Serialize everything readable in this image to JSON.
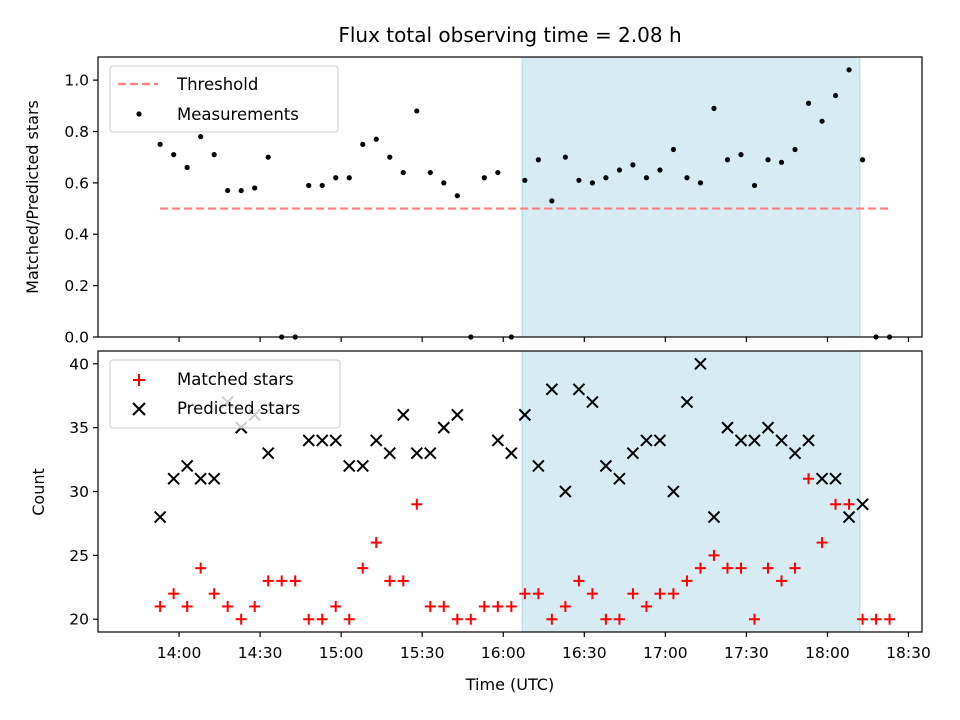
{
  "chart_data": [
    {
      "type": "scatter",
      "title": "Flux total observing time = 2.08 h",
      "xlabel": "",
      "ylabel": "Matched/Predicted stars",
      "ylim": [
        0,
        1.09
      ],
      "yticks": [
        "0.0",
        "0.2",
        "0.4",
        "0.6",
        "0.8",
        "1.0"
      ],
      "ytick_values": [
        0,
        0.2,
        0.4,
        0.6,
        0.8,
        1.0
      ],
      "legend_placement": "upper-left",
      "shaded_span": {
        "from": "16:07",
        "to": "18:12",
        "color": "#add8e6"
      },
      "threshold": {
        "name": "Threshold",
        "value": 0.5,
        "from": "13:53",
        "to": "18:23",
        "color": "#ff7f7f"
      },
      "series": [
        {
          "name": "Measurements",
          "color": "#000000",
          "marker": "dot",
          "x": [
            "13:53",
            "13:58",
            "14:03",
            "14:08",
            "14:13",
            "14:18",
            "14:23",
            "14:28",
            "14:33",
            "14:38",
            "14:43",
            "14:48",
            "14:53",
            "14:58",
            "15:03",
            "15:08",
            "15:13",
            "15:18",
            "15:23",
            "15:28",
            "15:33",
            "15:38",
            "15:43",
            "15:48",
            "15:53",
            "15:58",
            "16:03",
            "16:08",
            "16:13",
            "16:18",
            "16:23",
            "16:28",
            "16:33",
            "16:38",
            "16:43",
            "16:48",
            "16:53",
            "16:58",
            "17:03",
            "17:08",
            "17:13",
            "17:18",
            "17:23",
            "17:28",
            "17:33",
            "17:38",
            "17:43",
            "17:48",
            "17:53",
            "17:58",
            "18:03",
            "18:08",
            "18:13",
            "18:18",
            "18:23"
          ],
          "y": [
            0.75,
            0.71,
            0.66,
            0.78,
            0.71,
            0.57,
            0.57,
            0.58,
            0.7,
            0.0,
            0.0,
            0.59,
            0.59,
            0.62,
            0.62,
            0.75,
            0.77,
            0.7,
            0.64,
            0.88,
            0.64,
            0.6,
            0.55,
            0.0,
            0.62,
            0.64,
            0.0,
            0.61,
            0.69,
            0.53,
            0.7,
            0.61,
            0.6,
            0.62,
            0.65,
            0.67,
            0.62,
            0.65,
            0.73,
            0.62,
            0.6,
            0.89,
            0.69,
            0.71,
            0.59,
            0.69,
            0.68,
            0.73,
            0.91,
            0.84,
            0.94,
            1.04,
            0.69,
            0.0,
            0.0
          ]
        }
      ]
    },
    {
      "type": "scatter",
      "title": "",
      "xlabel": "Time (UTC)",
      "ylabel": "Count",
      "ylim": [
        19,
        41
      ],
      "yticks": [
        "20",
        "25",
        "30",
        "35",
        "40"
      ],
      "ytick_values": [
        20,
        25,
        30,
        35,
        40
      ],
      "xticks": [
        "14:00",
        "14:30",
        "15:00",
        "15:30",
        "16:00",
        "16:30",
        "17:00",
        "17:30",
        "18:00",
        "18:30"
      ],
      "legend_placement": "upper-left",
      "shaded_span": {
        "from": "16:07",
        "to": "18:12",
        "color": "#add8e6"
      },
      "series": [
        {
          "name": "Matched stars",
          "color": "#ff0000",
          "marker": "plus",
          "x": [
            "13:53",
            "13:58",
            "14:03",
            "14:08",
            "14:13",
            "14:18",
            "14:23",
            "14:28",
            "14:33",
            "14:38",
            "14:43",
            "14:48",
            "14:53",
            "14:58",
            "15:03",
            "15:08",
            "15:13",
            "15:18",
            "15:23",
            "15:28",
            "15:33",
            "15:38",
            "15:43",
            "15:48",
            "15:53",
            "15:58",
            "16:03",
            "16:08",
            "16:13",
            "16:18",
            "16:23",
            "16:28",
            "16:33",
            "16:38",
            "16:43",
            "16:48",
            "16:53",
            "16:58",
            "17:03",
            "17:08",
            "17:13",
            "17:18",
            "17:23",
            "17:28",
            "17:33",
            "17:38",
            "17:43",
            "17:48",
            "17:53",
            "17:58",
            "18:03",
            "18:08",
            "18:13",
            "18:18",
            "18:23"
          ],
          "y": [
            21,
            22,
            21,
            24,
            22,
            21,
            20,
            21,
            23,
            23,
            23,
            20,
            20,
            21,
            20,
            24,
            26,
            23,
            23,
            29,
            21,
            21,
            20,
            20,
            21,
            21,
            21,
            22,
            22,
            20,
            21,
            23,
            22,
            20,
            20,
            22,
            21,
            22,
            22,
            23,
            24,
            25,
            24,
            24,
            20,
            24,
            23,
            24,
            31,
            26,
            29,
            29,
            20,
            20,
            20
          ]
        },
        {
          "name": "Predicted stars",
          "color": "#000000",
          "marker": "x",
          "x": [
            "13:53",
            "13:58",
            "14:03",
            "14:08",
            "14:13",
            "14:18",
            "14:23",
            "14:28",
            "14:33",
            "14:48",
            "14:53",
            "14:58",
            "15:03",
            "15:08",
            "15:13",
            "15:18",
            "15:23",
            "15:28",
            "15:33",
            "15:38",
            "15:43",
            "15:58",
            "16:03",
            "16:08",
            "16:13",
            "16:18",
            "16:23",
            "16:28",
            "16:33",
            "16:38",
            "16:43",
            "16:48",
            "16:53",
            "16:58",
            "17:03",
            "17:08",
            "17:13",
            "17:18",
            "17:23",
            "17:28",
            "17:33",
            "17:38",
            "17:43",
            "17:48",
            "17:53",
            "17:58",
            "18:03",
            "18:08",
            "18:13"
          ],
          "y": [
            28,
            31,
            32,
            31,
            31,
            37,
            35,
            36,
            33,
            34,
            34,
            34,
            32,
            32,
            34,
            33,
            36,
            33,
            33,
            35,
            36,
            34,
            33,
            36,
            32,
            38,
            30,
            38,
            37,
            32,
            31,
            33,
            34,
            34,
            30,
            37,
            40,
            28,
            35,
            34,
            34,
            35,
            34,
            33,
            34,
            31,
            31,
            28,
            29
          ]
        }
      ]
    }
  ]
}
